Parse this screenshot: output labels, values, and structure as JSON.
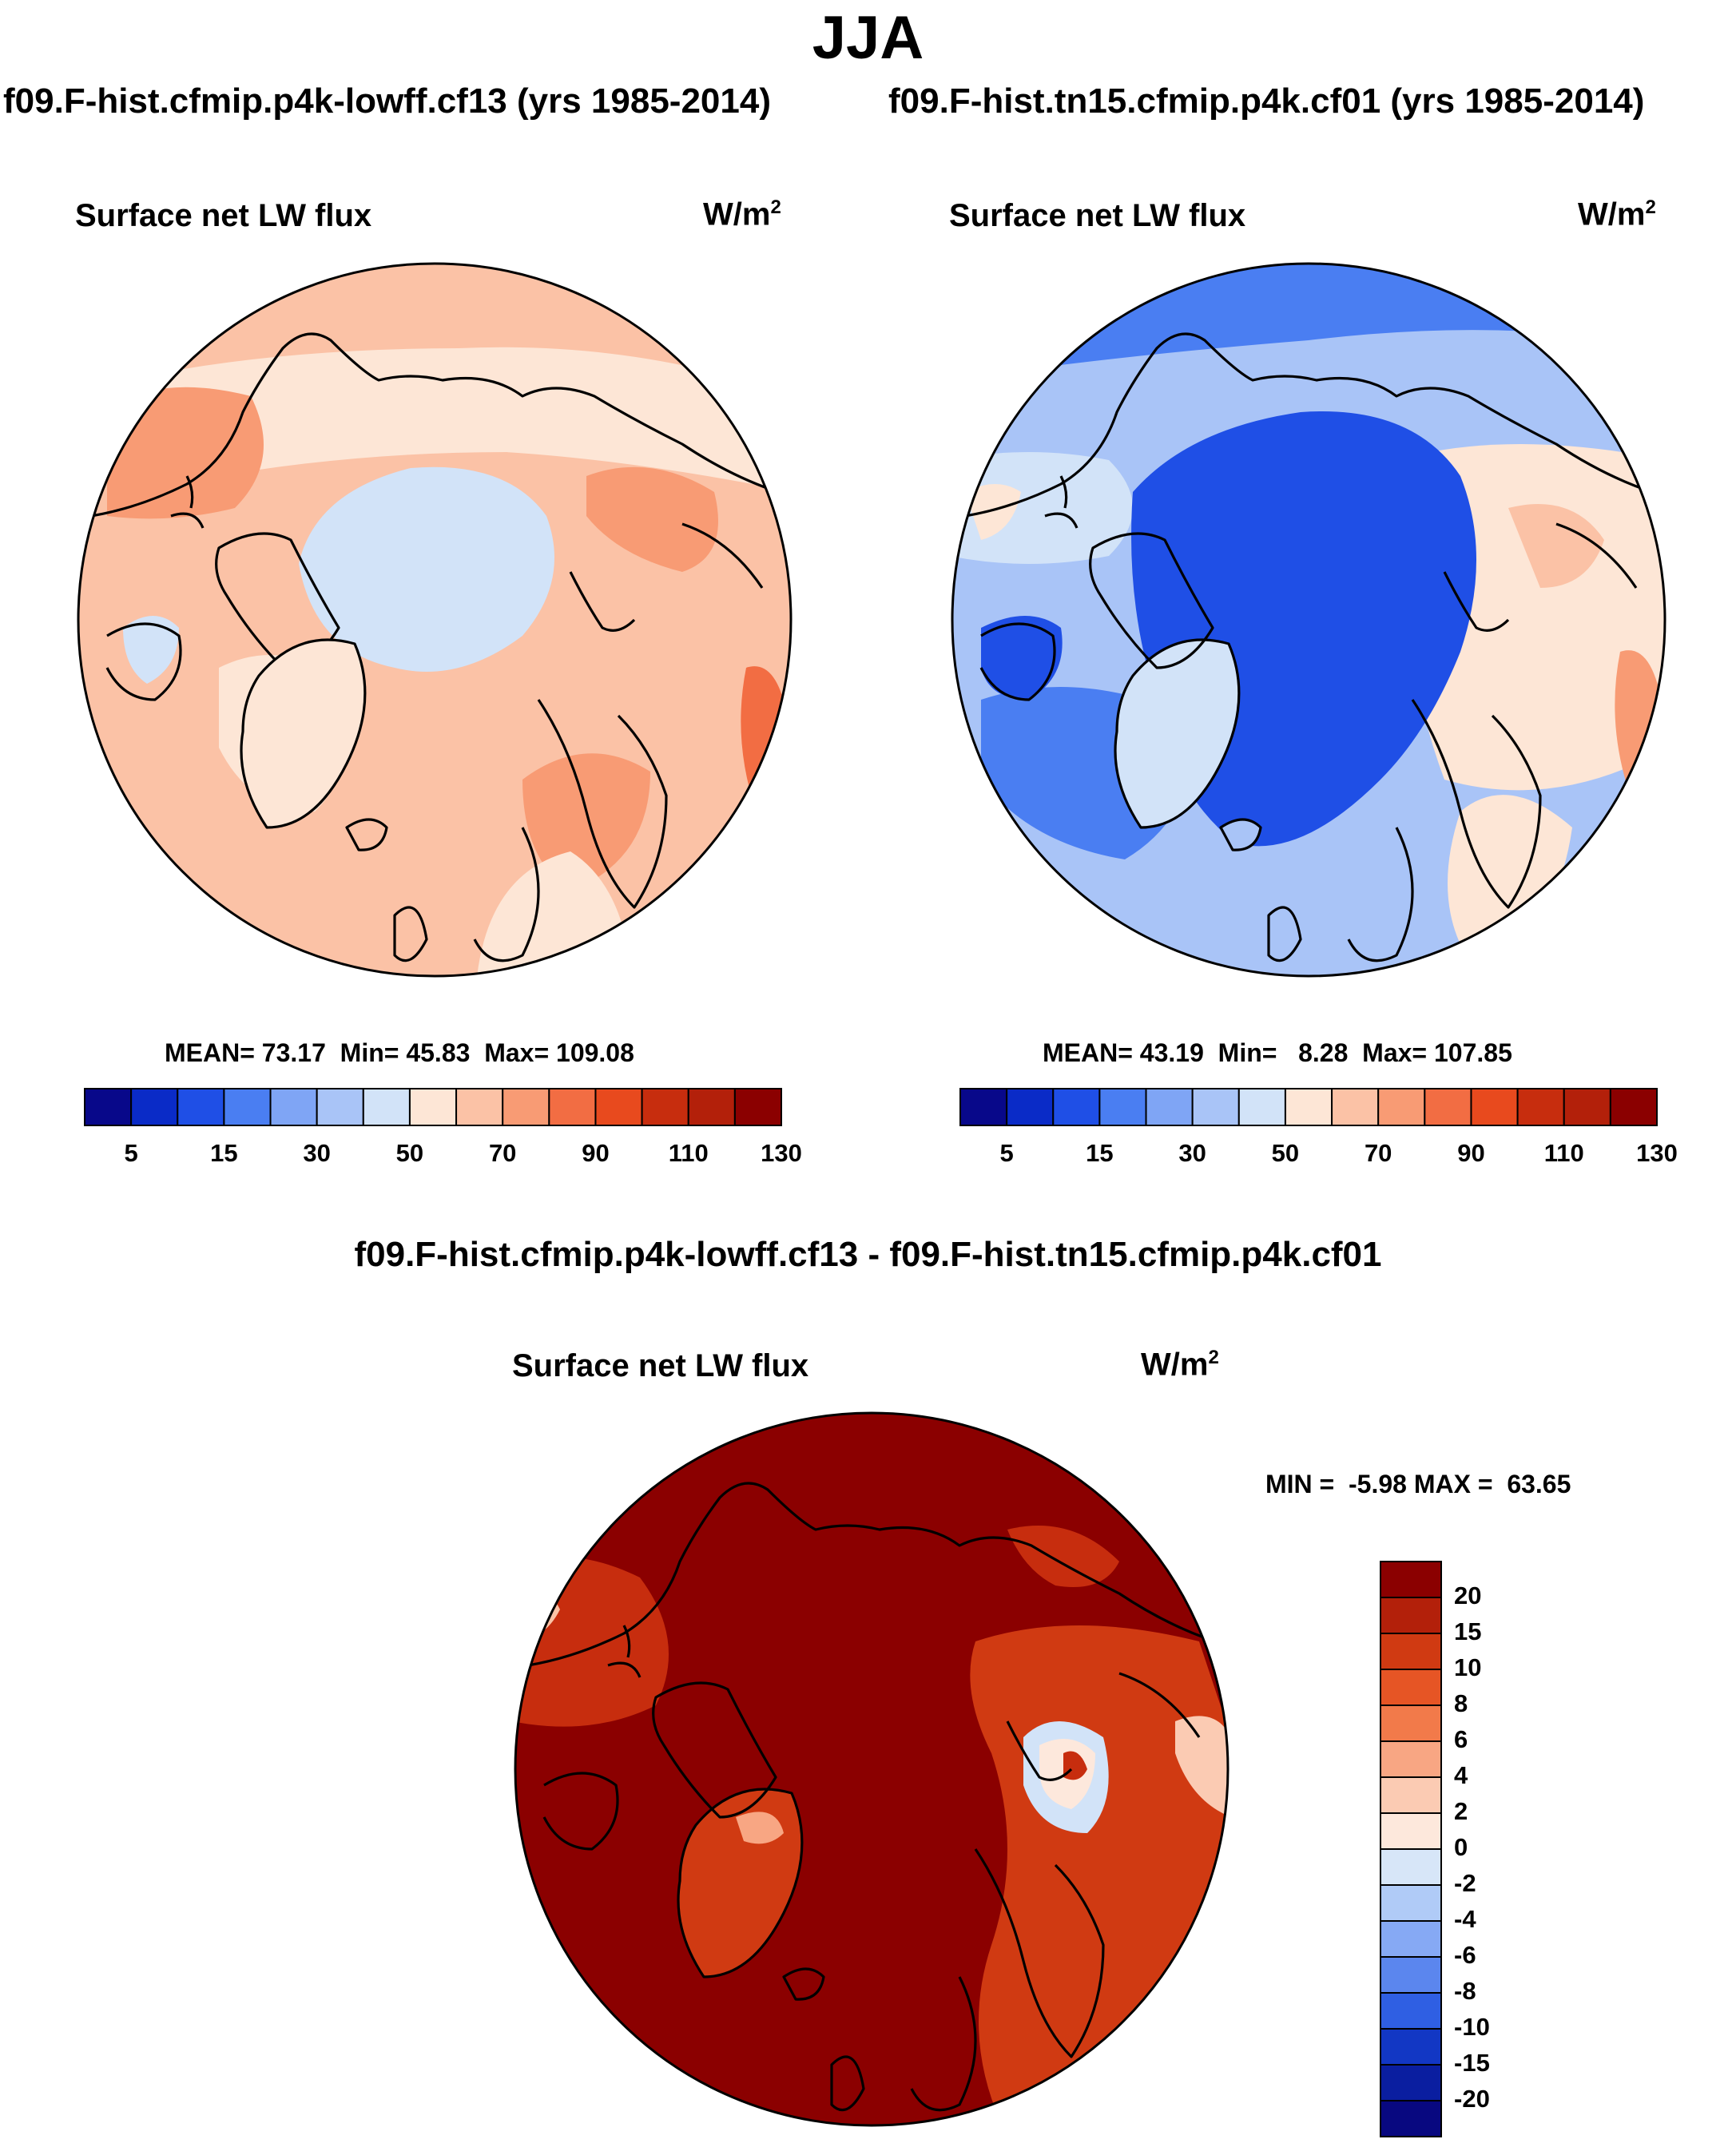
{
  "season": "JJA",
  "case_a_title": "f09.F-hist.cfmip.p4k-lowff.cf13 (yrs 1985-2014)",
  "case_b_title": "f09.F-hist.tn15.cfmip.p4k.cf01 (yrs 1985-2014)",
  "diff_title": "f09.F-hist.cfmip.p4k-lowff.cf13 - f09.F-hist.tn15.cfmip.p4k.cf01",
  "panels": {
    "a": {
      "variable": "Surface net LW flux",
      "units": "W/m",
      "units_sup": "2",
      "stats": {
        "mean_label": "MEAN=",
        "mean": "73.17",
        "min_label": "Min=",
        "min": "45.83",
        "max_label": "Max=",
        "max": "109.08"
      }
    },
    "b": {
      "variable": "Surface net LW flux",
      "units": "W/m",
      "units_sup": "2",
      "stats": {
        "mean_label": "MEAN=",
        "mean": "43.19",
        "min_label": "Min=",
        "min": "8.28",
        "max_label": "Max=",
        "max": "107.85"
      }
    },
    "diff": {
      "variable": "Surface net LW flux",
      "units": "W/m",
      "units_sup": "2",
      "stats": {
        "min_label": "MIN =",
        "min": "-5.98",
        "max_label": "MAX =",
        "max": "63.65"
      }
    }
  },
  "colorbar_abs": {
    "labels": [
      "5",
      "15",
      "30",
      "50",
      "70",
      "90",
      "110",
      "130"
    ],
    "colors": [
      "#08088a",
      "#0a2bc7",
      "#1f4fe6",
      "#4a7ef2",
      "#7fa5f5",
      "#a9c4f7",
      "#d2e3f8",
      "#fde6d6",
      "#fbc2a6",
      "#f89b74",
      "#f26d43",
      "#e84a1e",
      "#c72d0e",
      "#b3200a",
      "#8b0000"
    ]
  },
  "colorbar_diff": {
    "labels": [
      "20",
      "15",
      "10",
      "8",
      "6",
      "4",
      "2",
      "0",
      "-2",
      "-4",
      "-6",
      "-8",
      "-10",
      "-15",
      "-20"
    ],
    "colors": [
      "#8b0000",
      "#b3200a",
      "#d03a12",
      "#e65525",
      "#f27a4a",
      "#f8a683",
      "#fbcbb3",
      "#fde8dc",
      "#d7e6f8",
      "#b0cbf7",
      "#86a9f4",
      "#5b86ee",
      "#2f5fe3",
      "#1237c4",
      "#0a1ea0",
      "#080880"
    ]
  }
}
